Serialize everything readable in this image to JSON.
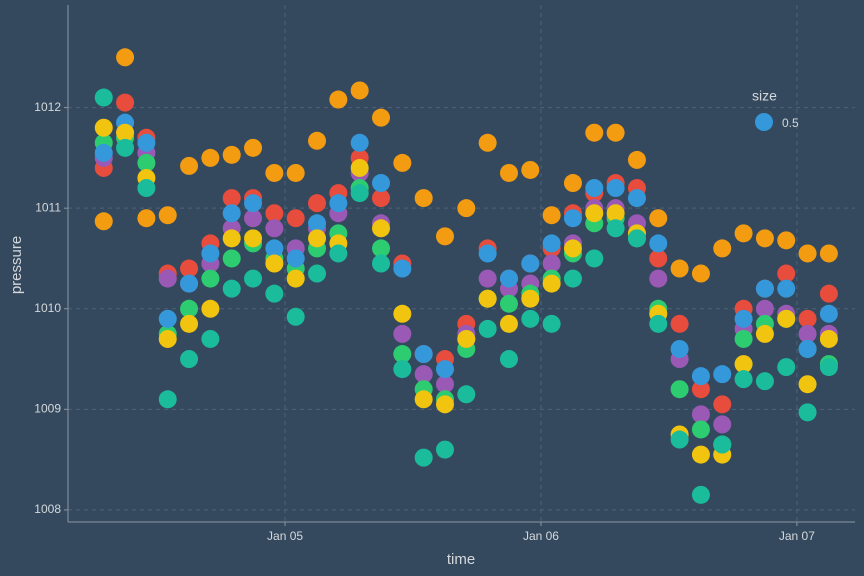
{
  "chart_data": {
    "type": "scatter",
    "x_label": "time",
    "y_label": "pressure",
    "x": [
      4.2917,
      4.375,
      4.4583,
      4.5417,
      4.625,
      4.7083,
      4.7917,
      4.875,
      4.9583,
      5.0417,
      5.125,
      5.2083,
      5.2917,
      5.375,
      5.4583,
      5.5417,
      5.625,
      5.7083,
      5.7917,
      5.875,
      5.9583,
      6.0417,
      6.125,
      6.2083,
      6.2917,
      6.375,
      6.4583,
      6.5417,
      6.625,
      6.7083,
      6.7917,
      6.875,
      6.9583,
      7.0417,
      7.125
    ],
    "xlim": [
      4.152,
      7.227
    ],
    "xticks": [
      {
        "value": 5,
        "label": "Jan 05"
      },
      {
        "value": 6,
        "label": "Jan 06"
      },
      {
        "value": 7,
        "label": "Jan 07"
      }
    ],
    "ylim": [
      1007.88,
      1013.02
    ],
    "yticks": [
      1008,
      1009,
      1010,
      1011,
      1012
    ],
    "grid": true,
    "series": [
      {
        "color": "#f39c12",
        "values": [
          1010.87,
          1012.5,
          1010.9,
          1010.93,
          1011.42,
          1011.5,
          1011.53,
          1011.6,
          1011.35,
          1011.35,
          1011.67,
          1012.08,
          1012.17,
          1011.9,
          1011.45,
          1011.1,
          1010.72,
          1011.0,
          1011.65,
          1011.35,
          1011.38,
          1010.93,
          1011.25,
          1011.75,
          1011.75,
          1011.48,
          1010.9,
          1010.4,
          1010.35,
          1010.6,
          1010.75,
          1010.7,
          1010.68,
          1010.55,
          1010.55
        ]
      },
      {
        "color": "#e74c3c",
        "values": [
          1011.4,
          1012.05,
          1011.7,
          1010.35,
          1010.4,
          1010.65,
          1011.1,
          1011.1,
          1010.95,
          1010.9,
          1011.05,
          1011.15,
          1011.5,
          1011.1,
          1010.45,
          1009.55,
          1009.5,
          1009.85,
          1010.6,
          1010.3,
          1010.45,
          1010.6,
          1010.95,
          1011.15,
          1011.25,
          1011.2,
          1010.5,
          1009.85,
          1009.2,
          1009.05,
          1010.0,
          1010.2,
          1010.35,
          1009.9,
          1010.15
        ]
      },
      {
        "color": "#9b59b6",
        "values": [
          1011.5,
          1011.75,
          1011.55,
          1010.3,
          1010.25,
          1010.45,
          1010.8,
          1010.9,
          1010.8,
          1010.6,
          1010.8,
          1010.95,
          1011.35,
          1010.85,
          1009.75,
          1009.35,
          1009.25,
          1009.75,
          1010.3,
          1010.2,
          1010.25,
          1010.45,
          1010.65,
          1011.0,
          1011.0,
          1010.85,
          1010.3,
          1009.5,
          1008.95,
          1008.85,
          1009.8,
          1010.0,
          1009.95,
          1009.75,
          1009.75
        ]
      },
      {
        "color": "#2ecc71",
        "values": [
          1011.65,
          1011.7,
          1011.45,
          1009.75,
          1010.0,
          1010.3,
          1010.5,
          1010.65,
          1010.5,
          1010.4,
          1010.6,
          1010.75,
          1011.2,
          1010.6,
          1009.55,
          1009.2,
          1009.1,
          1009.6,
          1010.1,
          1010.05,
          1010.15,
          1010.3,
          1010.55,
          1010.85,
          1010.9,
          1010.7,
          1010.0,
          1009.2,
          1008.8,
          1008.65,
          1009.7,
          1009.85,
          1009.9,
          1009.6,
          1009.45
        ]
      },
      {
        "color": "#3498db",
        "values": [
          1011.55,
          1011.85,
          1011.65,
          1009.9,
          1010.25,
          1010.55,
          1010.95,
          1011.05,
          1010.6,
          1010.5,
          1010.85,
          1011.05,
          1011.65,
          1011.25,
          1010.4,
          1009.55,
          1009.4,
          1009.7,
          1010.55,
          1010.3,
          1010.45,
          1010.65,
          1010.9,
          1011.2,
          1011.2,
          1011.1,
          1010.65,
          1009.6,
          1009.33,
          1009.35,
          1009.9,
          1010.2,
          1010.2,
          1009.6,
          1009.95
        ]
      },
      {
        "color": "#f1c40f",
        "values": [
          1011.8,
          1011.75,
          1011.3,
          1009.7,
          1009.85,
          1010.0,
          1010.7,
          1010.7,
          1010.45,
          1010.3,
          1010.7,
          1010.65,
          1011.4,
          1010.8,
          1009.95,
          1009.1,
          1009.05,
          1009.7,
          1010.1,
          1009.85,
          1010.1,
          1010.25,
          1010.6,
          1010.95,
          1010.95,
          1010.75,
          1009.95,
          1008.75,
          1008.55,
          1008.55,
          1009.45,
          1009.75,
          1009.9,
          1009.25,
          1009.7
        ]
      },
      {
        "color": "#1abc9c",
        "values": [
          1012.1,
          1011.6,
          1011.2,
          1009.1,
          1009.5,
          1009.7,
          1010.2,
          1010.3,
          1010.15,
          1009.92,
          1010.35,
          1010.55,
          1011.15,
          1010.45,
          1009.4,
          1008.52,
          1008.6,
          1009.15,
          1009.8,
          1009.5,
          1009.9,
          1009.85,
          1010.3,
          1010.5,
          1010.8,
          1010.7,
          1009.85,
          1008.7,
          1008.15,
          1008.65,
          1009.3,
          1009.28,
          1009.42,
          1008.97,
          1009.42
        ]
      }
    ],
    "size_legend": {
      "title": "size",
      "value": 0.5,
      "color": "#3498db"
    }
  }
}
